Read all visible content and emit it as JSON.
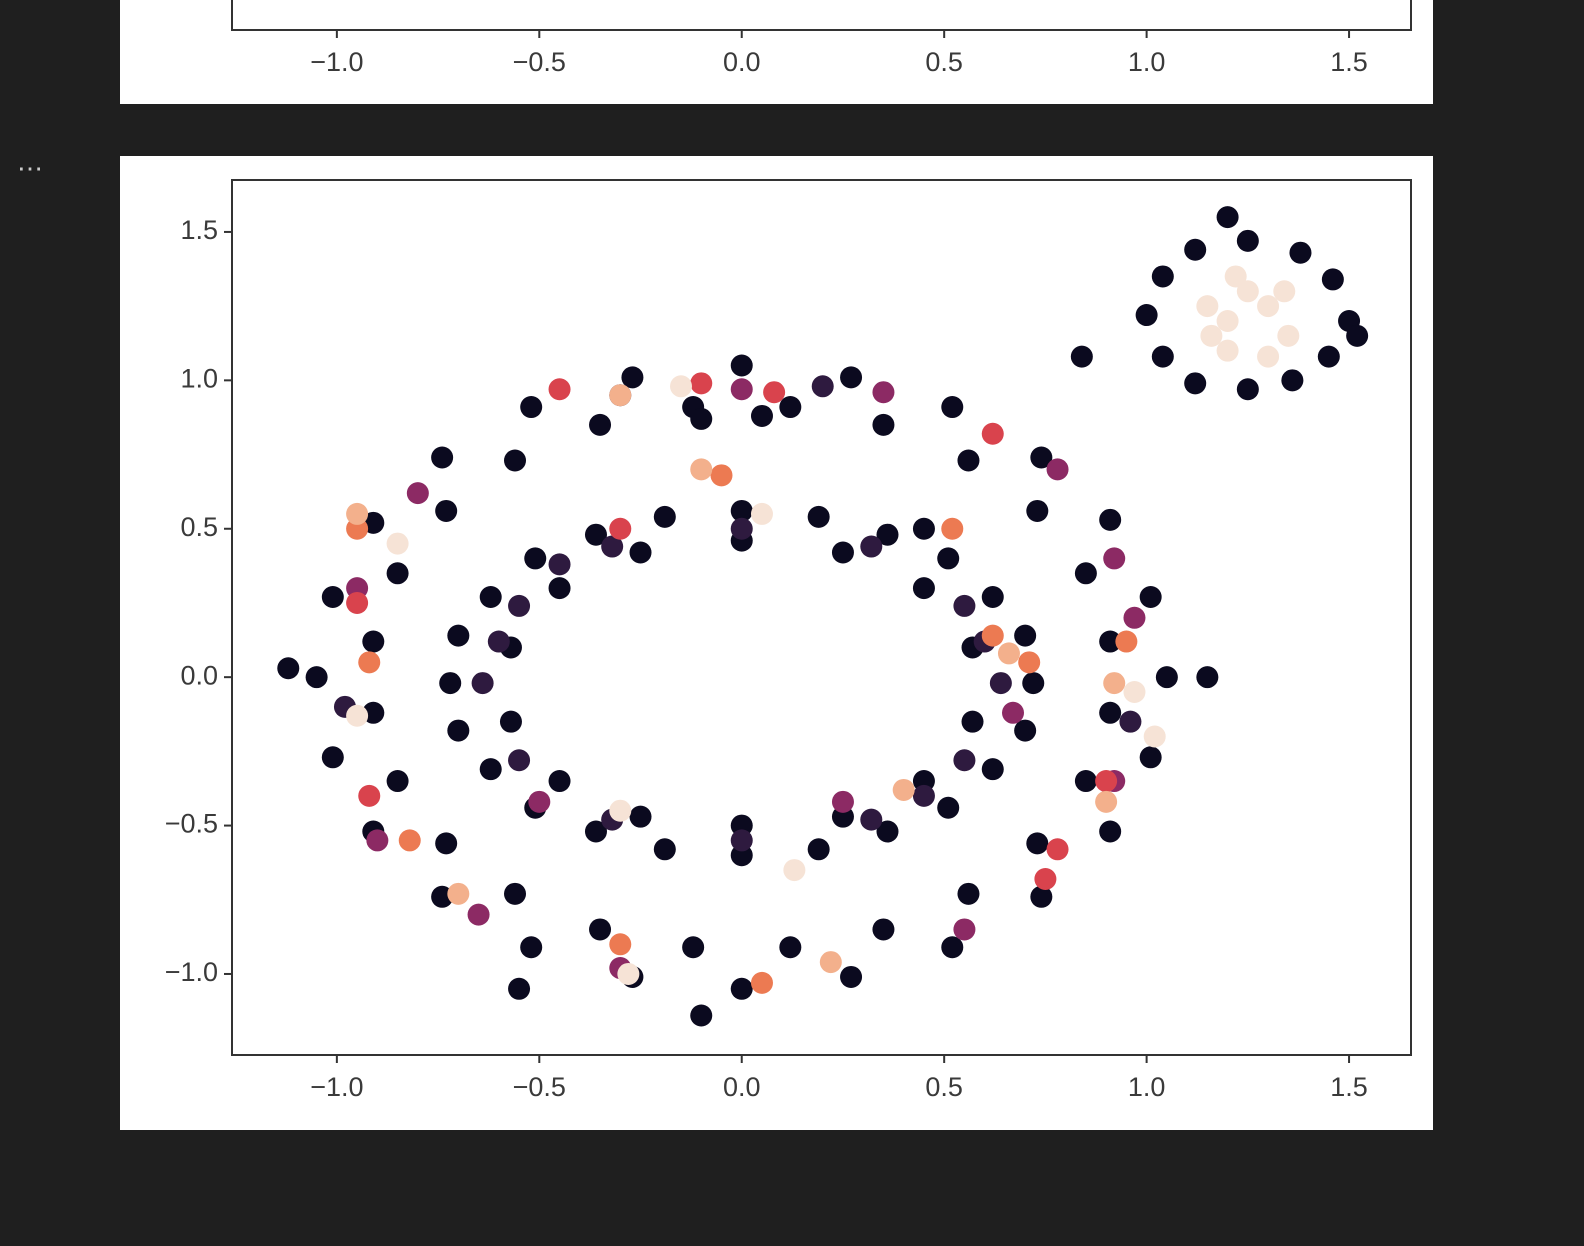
{
  "output_indicator": "⋯",
  "chart_data": [
    {
      "type": "scatter",
      "xlim": [
        -1.259,
        1.653
      ],
      "xticks": [
        {
          "value": -1.0,
          "label": "−1.0"
        },
        {
          "value": -0.5,
          "label": "−0.5"
        },
        {
          "value": 0.0,
          "label": "0.0"
        },
        0.5,
        {
          "value": 1.0,
          "label": "1.0"
        },
        1.5
      ]
    },
    {
      "type": "scatter",
      "xlim": [
        -1.259,
        1.653
      ],
      "ylim": [
        -1.273,
        1.675
      ],
      "xticks": [
        {
          "value": -1.0,
          "label": "−1.0"
        },
        {
          "value": -0.5,
          "label": "−0.5"
        },
        {
          "value": 0.0,
          "label": "0.0"
        },
        0.5,
        {
          "value": 1.0,
          "label": "1.0"
        },
        1.5
      ],
      "yticks": [
        {
          "value": -1.0,
          "label": "−1.0"
        },
        {
          "value": -0.5,
          "label": "−0.5"
        },
        {
          "value": 0.0,
          "label": "0.0"
        },
        0.5,
        {
          "value": 1.0,
          "label": "1.0"
        },
        1.5
      ],
      "series": [
        {
          "color": "#0b0a1f",
          "x": [
            1.05,
            1.01,
            0.91,
            0.74,
            0.52,
            0.27,
            0,
            -0.27,
            -0.52,
            -0.74,
            -0.91,
            -1.01,
            -1.05,
            -1.01,
            -0.91,
            -0.74,
            -0.52,
            -0.27,
            0,
            0.27,
            0.52,
            0.74,
            0.91,
            1.01,
            0.91,
            0.85,
            0.73,
            0.56,
            0.35,
            0.12,
            -0.12,
            -0.35,
            -0.56,
            -0.73,
            -0.85,
            -0.91,
            -0.91,
            -0.85,
            -0.73,
            -0.56,
            -0.35,
            -0.12,
            0.12,
            0.35,
            0.56,
            0.73,
            0.85,
            0.91,
            0.72,
            0.7,
            0.62,
            0.51,
            0.36,
            0.19,
            0,
            -0.19,
            -0.36,
            -0.51,
            -0.62,
            -0.7,
            -0.72,
            -0.7,
            -0.62,
            -0.51,
            -0.36,
            -0.19,
            0,
            0.19,
            0.36,
            0.51,
            0.62,
            0.7,
            0.57,
            0.45,
            0.25,
            0,
            -0.25,
            -0.45,
            -0.57,
            -0.57,
            -0.45,
            -0.25,
            0,
            0.25,
            0.45,
            0.57,
            1.0,
            1.04,
            1.12,
            1.25,
            1.38,
            1.46,
            1.5,
            1.45,
            1.36,
            1.25,
            1.12,
            1.04,
            1.2,
            0.84,
            1.52,
            -1.12,
            1.15,
            -0.55,
            -0.1,
            0.45,
            -0.1,
            0.05
          ],
          "y": [
            0,
            0.27,
            0.53,
            0.74,
            0.91,
            1.01,
            1.05,
            1.01,
            0.91,
            0.74,
            0.52,
            0.27,
            0,
            -0.27,
            -0.52,
            -0.74,
            -0.91,
            -1.01,
            -1.05,
            -1.01,
            -0.91,
            -0.74,
            -0.52,
            -0.27,
            0.12,
            0.35,
            0.56,
            0.73,
            0.85,
            0.91,
            0.91,
            0.85,
            0.73,
            0.56,
            0.35,
            0.12,
            -0.12,
            -0.35,
            -0.56,
            -0.73,
            -0.85,
            -0.91,
            -0.91,
            -0.85,
            -0.73,
            -0.56,
            -0.35,
            -0.12,
            -0.02,
            0.14,
            0.27,
            0.4,
            0.48,
            0.54,
            0.56,
            0.54,
            0.48,
            0.4,
            0.27,
            0.14,
            -0.02,
            -0.18,
            -0.31,
            -0.44,
            -0.52,
            -0.58,
            -0.6,
            -0.58,
            -0.52,
            -0.44,
            -0.31,
            -0.18,
            0.1,
            0.3,
            0.42,
            0.46,
            0.42,
            0.3,
            0.1,
            -0.15,
            -0.35,
            -0.47,
            -0.5,
            -0.47,
            -0.35,
            -0.15,
            1.22,
            1.35,
            1.44,
            1.47,
            1.43,
            1.34,
            1.2,
            1.08,
            1.0,
            0.97,
            0.99,
            1.08,
            1.55,
            1.08,
            1.15,
            0.03,
            0,
            -1.05,
            -1.14,
            0.5,
            0.87,
            0.88
          ]
        },
        {
          "color": "#2e1a3f",
          "x": [
            0.64,
            0.55,
            0.32,
            0,
            -0.32,
            -0.55,
            -0.64,
            -0.55,
            -0.32,
            0,
            0.32,
            0.55,
            0.6,
            -0.6,
            -0.45,
            0.45,
            -0.98,
            0.96,
            -0.3,
            0.2
          ],
          "y": [
            -0.02,
            0.24,
            0.44,
            0.5,
            0.44,
            0.24,
            -0.02,
            -0.28,
            -0.48,
            -0.55,
            -0.48,
            -0.28,
            0.12,
            0.12,
            0.38,
            -0.4,
            -0.1,
            -0.15,
            0.95,
            0.98
          ]
        },
        {
          "color": "#8c2a64",
          "x": [
            -0.95,
            -0.8,
            0.0,
            0.35,
            0.78,
            0.92,
            0.97,
            -0.65,
            -0.9,
            -0.3,
            0.55,
            0.92,
            0.25,
            -0.5,
            0.67
          ],
          "y": [
            0.3,
            0.62,
            0.97,
            0.96,
            0.7,
            0.4,
            0.2,
            -0.8,
            -0.55,
            -0.98,
            -0.85,
            -0.35,
            -0.42,
            -0.42,
            -0.12
          ]
        },
        {
          "color": "#d9434d",
          "x": [
            -0.95,
            -0.45,
            0.08,
            0.62,
            0.78,
            0.75,
            -0.92,
            -0.3,
            0.9,
            -0.1
          ],
          "y": [
            0.25,
            0.97,
            0.96,
            0.82,
            -0.58,
            -0.68,
            -0.4,
            0.5,
            -0.35,
            0.99
          ]
        },
        {
          "color": "#ec7a52",
          "x": [
            -0.92,
            -0.82,
            -0.3,
            0.05,
            0.52,
            0.62,
            0.71,
            0.95,
            -0.05,
            -0.95
          ],
          "y": [
            0.05,
            -0.55,
            -0.9,
            -1.03,
            0.5,
            0.14,
            0.05,
            0.12,
            0.68,
            0.5
          ]
        },
        {
          "color": "#f3b08c",
          "x": [
            -0.95,
            -0.7,
            0.22,
            0.9,
            0.92,
            0.4,
            0.66,
            -0.3,
            -0.1
          ],
          "y": [
            0.55,
            -0.73,
            -0.96,
            -0.42,
            -0.02,
            -0.38,
            0.08,
            0.95,
            0.7
          ]
        },
        {
          "color": "#f6e3d6",
          "x": [
            -0.95,
            -0.15,
            -0.3,
            0.05,
            1.02,
            0.13,
            -0.28,
            0.97,
            -0.85,
            1.2,
            1.3,
            1.25,
            1.15,
            1.35,
            1.2,
            1.3,
            1.22,
            1.16,
            1.34
          ],
          "y": [
            -0.13,
            0.98,
            -0.45,
            0.55,
            -0.2,
            -0.65,
            -1.0,
            -0.05,
            0.45,
            1.2,
            1.25,
            1.3,
            1.25,
            1.15,
            1.1,
            1.08,
            1.35,
            1.15,
            1.3
          ]
        }
      ]
    }
  ]
}
